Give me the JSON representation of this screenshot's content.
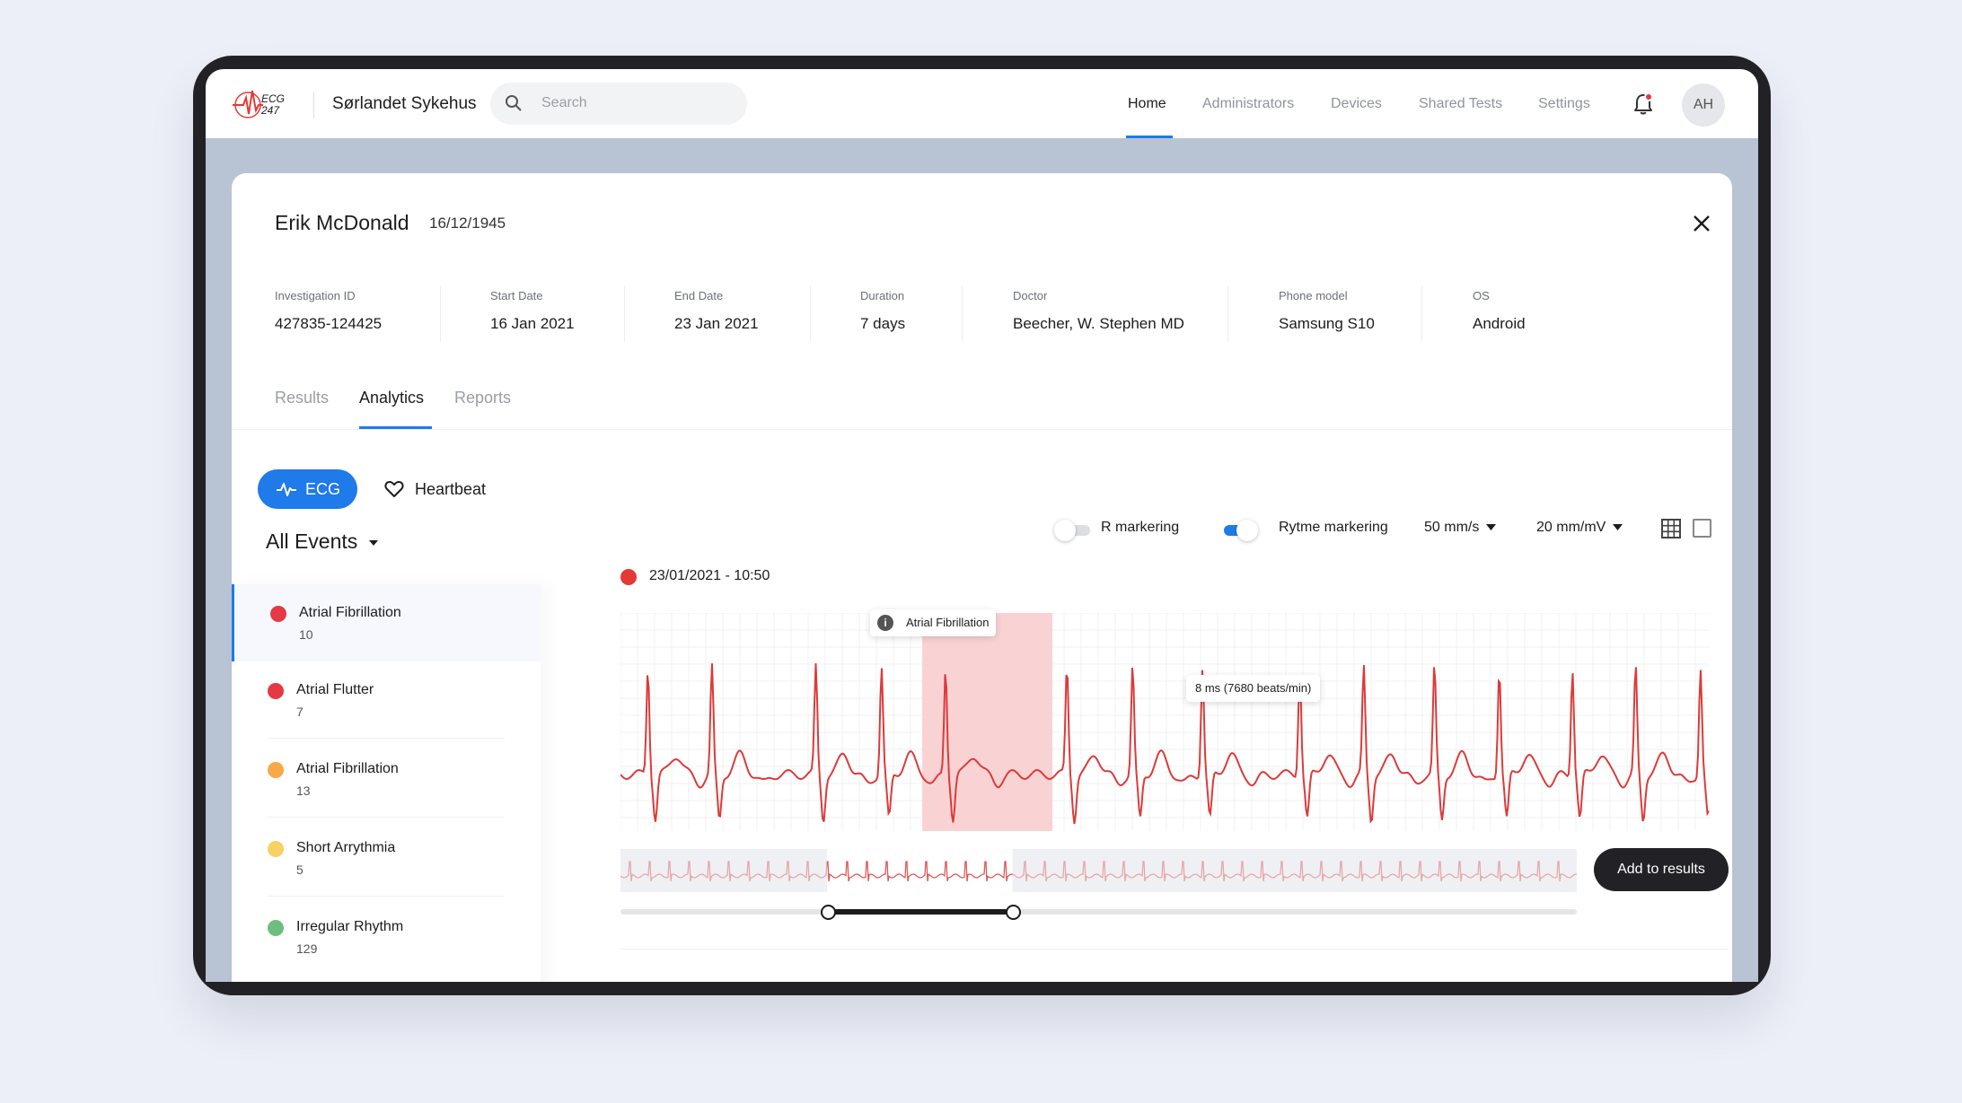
{
  "app": {
    "logo_text": "ECG 247",
    "org_name": "Sørlandet Sykehus",
    "search_placeholder": "Search",
    "nav": [
      "Home",
      "Administrators",
      "Devices",
      "Shared Tests",
      "Settings"
    ],
    "active_nav": "Home",
    "avatar_initials": "AH",
    "notification_dot": true
  },
  "patient": {
    "name": "Erik McDonald",
    "dob": "16/12/1945"
  },
  "investigation": [
    {
      "label": "Investigation ID",
      "value": "427835-124425"
    },
    {
      "label": "Start Date",
      "value": "16 Jan 2021"
    },
    {
      "label": "End Date",
      "value": "23 Jan 2021"
    },
    {
      "label": "Duration",
      "value": "7 days"
    },
    {
      "label": "Doctor",
      "value": "Beecher, W. Stephen  MD"
    },
    {
      "label": "Phone model",
      "value": "Samsung S10"
    },
    {
      "label": "OS",
      "value": "Android"
    }
  ],
  "tabs": [
    "Results",
    "Analytics",
    "Reports"
  ],
  "active_tab": "Analytics",
  "view_buttons": {
    "ecg": "ECG",
    "heartbeat": "Heartbeat"
  },
  "events_header": "All Events",
  "events": [
    {
      "name": "Atrial Fibrillation",
      "count": "10",
      "color": "#e53945",
      "selected": true
    },
    {
      "name": "Atrial Flutter",
      "count": "7",
      "color": "#e53945",
      "selected": false
    },
    {
      "name": "Atrial Fibrillation",
      "count": "13",
      "color": "#f7a948",
      "selected": false
    },
    {
      "name": "Short Arrythmia",
      "count": "5",
      "color": "#f7d163",
      "selected": false
    },
    {
      "name": "Irregular Rhythm",
      "count": "129",
      "color": "#6ebf7f",
      "selected": false
    }
  ],
  "controls": {
    "r_marking": {
      "label": "R markering",
      "on": false
    },
    "rhythm_marking": {
      "label": "Rytme markering",
      "on": true
    },
    "speed": "50 mm/s",
    "gain": "20 mm/mV"
  },
  "recording": {
    "timestamp": "23/01/2021 - 10:50",
    "event_tag": "Atrial Fibrillation",
    "measure_tag": "8 ms (7680 beats/min)",
    "overview_window": [
      0.216,
      0.41
    ]
  },
  "add_button": "Add to results",
  "colors": {
    "accent": "#1f7aea",
    "ecg_trace": "#dc3a3a",
    "highlight": "#f9d3d3"
  }
}
